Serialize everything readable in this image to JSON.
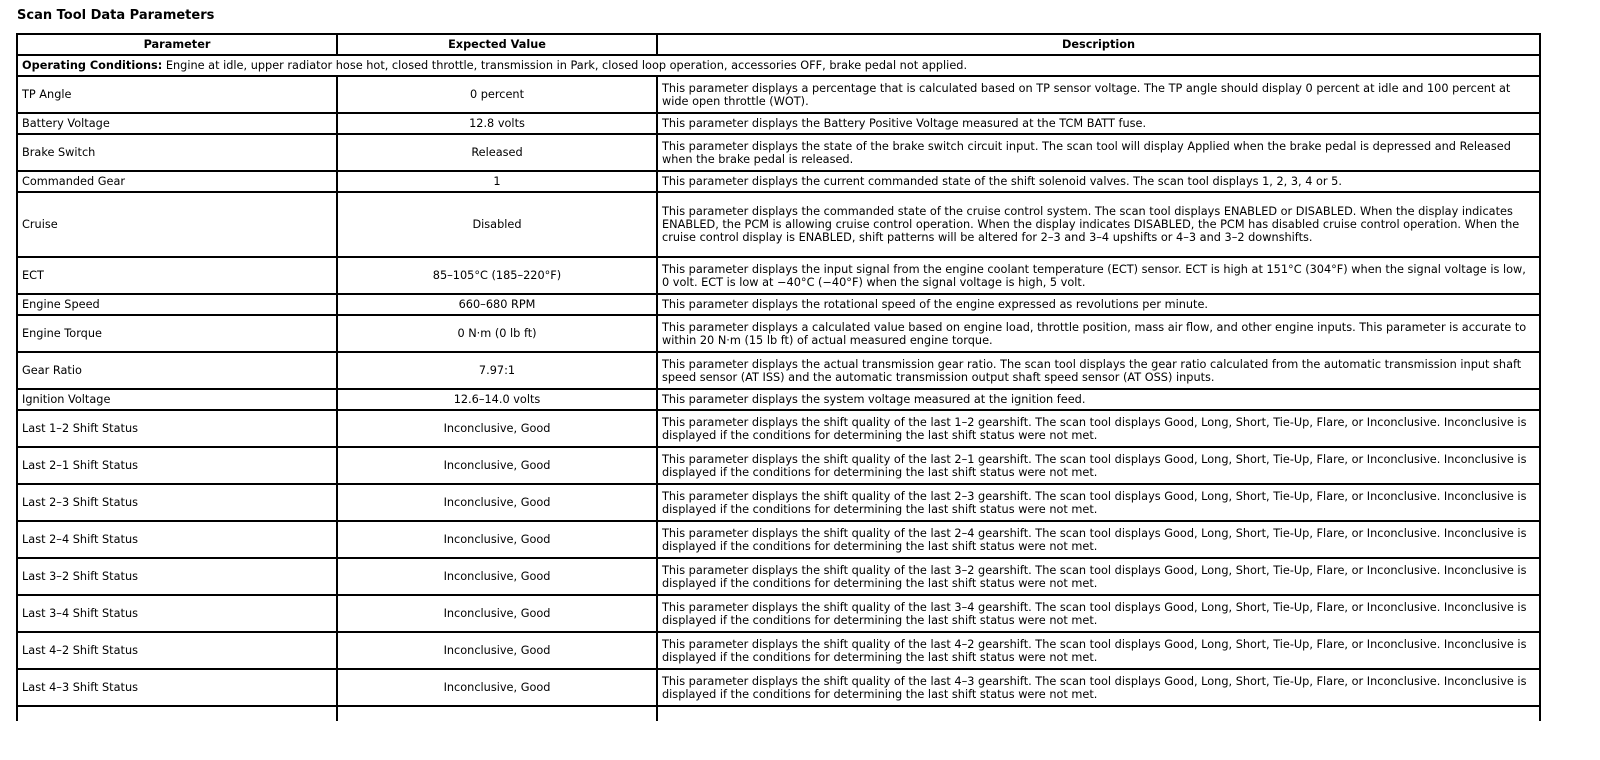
{
  "title": "Scan Tool Data Parameters",
  "headers": [
    "Parameter",
    "Expected Value",
    "Description"
  ],
  "operating_conditions": {
    "label": "Operating Conditions:",
    "text": " Engine at idle, upper radiator hose hot, closed throttle, transmission in Park, closed loop operation, accessories OFF, brake pedal not applied."
  },
  "rows": [
    {
      "parameter": "TP Angle",
      "expected": "0 percent",
      "description": "This parameter displays a percentage that is calculated based on TP sensor voltage. The TP angle should display 0 percent at idle and 100 percent at wide open throttle (WOT).",
      "lines": 2
    },
    {
      "parameter": "Battery Voltage",
      "expected": "12.8 volts",
      "description": "This parameter displays the Battery Positive Voltage measured at the TCM BATT fuse.",
      "lines": 1
    },
    {
      "parameter": "Brake Switch",
      "expected": "Released",
      "description": "This parameter displays the state of the brake switch circuit input. The scan tool will display Applied when the brake pedal is depressed and Released when the brake pedal is released.",
      "lines": 2
    },
    {
      "parameter": "Commanded Gear",
      "expected": "1",
      "description": "This parameter displays the current commanded state of the shift solenoid valves. The scan tool displays 1, 2, 3, 4 or 5.",
      "lines": 1
    },
    {
      "parameter": "Cruise",
      "expected": "Disabled",
      "description": "This parameter displays the commanded state of the cruise control system. The scan tool displays ENABLED or DISABLED. When the display indicates ENABLED, the PCM is allowing cruise control operation. When the display indicates DISABLED, the PCM has disabled cruise control operation. When the cruise control display is ENABLED, shift patterns will be altered for 2–3 and 3–4 upshifts or 4–3 and 3–2 downshifts.",
      "lines": 4
    },
    {
      "parameter": "ECT",
      "expected": "85–105°C (185–220°F)",
      "description": "This parameter displays the input signal from the engine coolant temperature (ECT) sensor. ECT is high at 151°C (304°F) when the signal voltage is low, 0 volt. ECT is low at −40°C (−40°F) when the signal voltage is high, 5 volt.",
      "lines": 2
    },
    {
      "parameter": "Engine Speed",
      "expected": "660–680 RPM",
      "description": "This parameter displays the rotational speed of the engine expressed as revolutions per minute.",
      "lines": 1
    },
    {
      "parameter": "Engine Torque",
      "expected": "0 N·m (0 lb ft)",
      "description": "This parameter displays a calculated value based on engine load, throttle position, mass air flow, and other engine inputs. This parameter is accurate to within 20 N·m (15 lb ft) of actual measured engine torque.",
      "lines": 2
    },
    {
      "parameter": "Gear Ratio",
      "expected": "7.97:1",
      "description": "This parameter displays the actual transmission gear ratio. The scan tool displays the gear ratio calculated from the automatic transmission input shaft speed sensor (AT ISS) and the automatic transmission output shaft speed sensor (AT OSS) inputs.",
      "lines": 2
    },
    {
      "parameter": "Ignition Voltage",
      "expected": "12.6–14.0 volts",
      "description": "This parameter displays the system voltage measured at the ignition feed.",
      "lines": 1
    },
    {
      "parameter": "Last 1–2 Shift Status",
      "expected": "Inconclusive, Good",
      "description": "This parameter displays the shift quality of the last 1–2 gearshift. The scan tool displays Good, Long, Short, Tie-Up, Flare, or Inconclusive. Inconclusive is displayed if the conditions for determining the last shift status were not met.",
      "lines": 2
    },
    {
      "parameter": "Last 2–1 Shift Status",
      "expected": "Inconclusive, Good",
      "description": "This parameter displays the shift quality of the last 2–1 gearshift. The scan tool displays Good, Long, Short, Tie-Up, Flare, or Inconclusive. Inconclusive is displayed if the conditions for determining the last shift status were not met.",
      "lines": 2
    },
    {
      "parameter": "Last 2–3 Shift Status",
      "expected": "Inconclusive, Good",
      "description": "This parameter displays the shift quality of the last 2–3 gearshift. The scan tool displays Good, Long, Short, Tie-Up, Flare, or Inconclusive. Inconclusive is displayed if the conditions for determining the last shift status were not met.",
      "lines": 2
    },
    {
      "parameter": "Last 2–4 Shift Status",
      "expected": "Inconclusive, Good",
      "description": "This parameter displays the shift quality of the last 2–4 gearshift. The scan tool displays Good, Long, Short, Tie-Up, Flare, or Inconclusive. Inconclusive is displayed if the conditions for determining the last shift status were not met.",
      "lines": 2
    },
    {
      "parameter": "Last 3–2 Shift Status",
      "expected": "Inconclusive, Good",
      "description": "This parameter displays the shift quality of the last 3–2 gearshift. The scan tool displays Good, Long, Short, Tie-Up, Flare, or Inconclusive. Inconclusive is displayed if the conditions for determining the last shift status were not met.",
      "lines": 2
    },
    {
      "parameter": "Last 3–4 Shift Status",
      "expected": "Inconclusive, Good",
      "description": "This parameter displays the shift quality of the last 3–4 gearshift. The scan tool displays Good, Long, Short, Tie-Up, Flare, or Inconclusive. Inconclusive is displayed if the conditions for determining the last shift status were not met.",
      "lines": 2
    },
    {
      "parameter": "Last 4–2 Shift Status",
      "expected": "Inconclusive, Good",
      "description": "This parameter displays the shift quality of the last 4–2 gearshift. The scan tool displays Good, Long, Short, Tie-Up, Flare, or Inconclusive. Inconclusive is displayed if the conditions for determining the last shift status were not met.",
      "lines": 2
    },
    {
      "parameter": "Last 4–3 Shift Status",
      "expected": "Inconclusive, Good",
      "description": "This parameter displays the shift quality of the last 4–3 gearshift. The scan tool displays Good, Long, Short, Tie-Up, Flare, or Inconclusive. Inconclusive is displayed if the conditions for determining the last shift status were not met.",
      "lines": 2
    }
  ]
}
